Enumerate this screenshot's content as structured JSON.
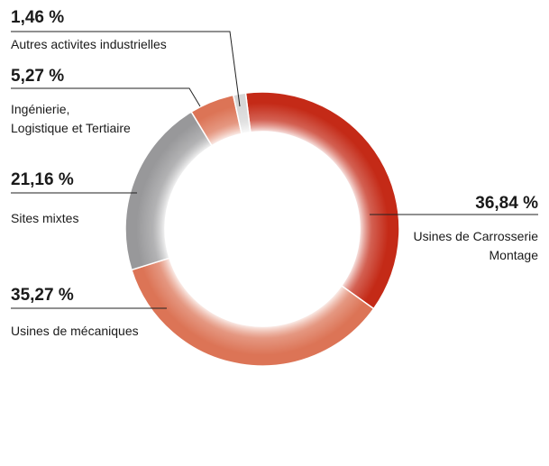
{
  "chart_data": {
    "type": "pie",
    "categories": [
      "Usines de Carrosserie\nMontage",
      "Usines de mécaniques",
      "Sites mixtes",
      "Ingénierie,\nLogistique et Tertiaire",
      "Autres activites industrielles"
    ],
    "values": [
      36.84,
      35.27,
      21.16,
      5.27,
      1.46
    ],
    "value_labels": [
      "36,84 %",
      "35,27 %",
      "21,16 %",
      "5,27 %",
      "1,46 %"
    ],
    "colors": [
      "#c42a17",
      "#dc7456",
      "#98989a",
      "#dc7456",
      "#d6d6d6"
    ]
  }
}
